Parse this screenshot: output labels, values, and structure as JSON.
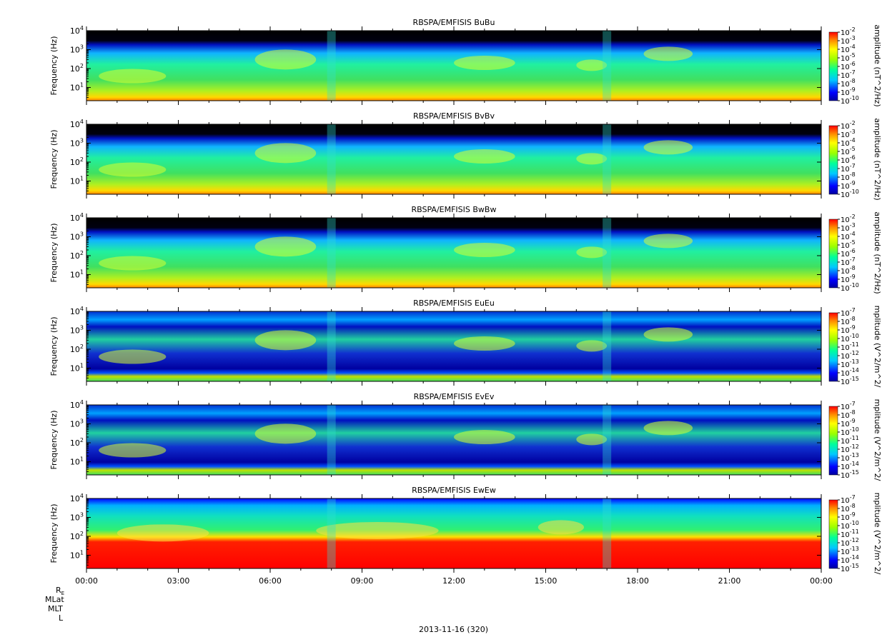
{
  "chart_data": [
    {
      "type": "heatmap",
      "title": "RBSPA/EMFISIS  BuBu",
      "ylabel": "Frequency (Hz)",
      "ylim": [
        2,
        10000
      ],
      "yscale": "log",
      "y_ticks": [
        "10^1",
        "10^2",
        "10^3",
        "10^4"
      ],
      "colorbar_label": "amplitude (nT^2/Hz)",
      "colorbar_ticks": [
        "10^-2",
        "10^-3",
        "10^-4",
        "10^-5",
        "10^-6",
        "10^-7",
        "10^-8",
        "10^-9",
        "10^-10"
      ],
      "colorbar_range": [
        -10,
        -2
      ]
    },
    {
      "type": "heatmap",
      "title": "RBSPA/EMFISIS  BvBv",
      "ylabel": "Frequency (Hz)",
      "ylim": [
        2,
        10000
      ],
      "yscale": "log",
      "y_ticks": [
        "10^1",
        "10^2",
        "10^3",
        "10^4"
      ],
      "colorbar_label": "amplitude (nT^2/Hz)",
      "colorbar_ticks": [
        "10^-2",
        "10^-3",
        "10^-4",
        "10^-5",
        "10^-6",
        "10^-7",
        "10^-8",
        "10^-9",
        "10^-10"
      ],
      "colorbar_range": [
        -10,
        -2
      ]
    },
    {
      "type": "heatmap",
      "title": "RBSPA/EMFISIS  BwBw",
      "ylabel": "Frequency (Hz)",
      "ylim": [
        2,
        10000
      ],
      "yscale": "log",
      "y_ticks": [
        "10^1",
        "10^2",
        "10^3",
        "10^4"
      ],
      "colorbar_label": "amplitude (nT^2/Hz)",
      "colorbar_ticks": [
        "10^-2",
        "10^-3",
        "10^-4",
        "10^-5",
        "10^-6",
        "10^-7",
        "10^-8",
        "10^-9",
        "10^-10"
      ],
      "colorbar_range": [
        -10,
        -2
      ]
    },
    {
      "type": "heatmap",
      "title": "RBSPA/EMFISIS  EuEu",
      "ylabel": "Frequency (Hz)",
      "ylim": [
        2,
        10000
      ],
      "yscale": "log",
      "y_ticks": [
        "10^1",
        "10^2",
        "10^3",
        "10^4"
      ],
      "colorbar_label": "mplitude (V^2/m^2/",
      "colorbar_ticks": [
        "10^-7",
        "10^-8",
        "10^-9",
        "10^-10",
        "10^-11",
        "10^-12",
        "10^-13",
        "10^-14",
        "10^-15"
      ],
      "colorbar_range": [
        -15,
        -7
      ]
    },
    {
      "type": "heatmap",
      "title": "RBSPA/EMFISIS  EvEv",
      "ylabel": "Frequency (Hz)",
      "ylim": [
        2,
        10000
      ],
      "yscale": "log",
      "y_ticks": [
        "10^1",
        "10^2",
        "10^3",
        "10^4"
      ],
      "colorbar_label": "mplitude (V^2/m^2/",
      "colorbar_ticks": [
        "10^-7",
        "10^-8",
        "10^-9",
        "10^-10",
        "10^-11",
        "10^-12",
        "10^-13",
        "10^-14",
        "10^-15"
      ],
      "colorbar_range": [
        -15,
        -7
      ]
    },
    {
      "type": "heatmap",
      "title": "RBSPA/EMFISIS  EwEw",
      "ylabel": "Frequency (Hz)",
      "ylim": [
        2,
        10000
      ],
      "yscale": "log",
      "y_ticks": [
        "10^1",
        "10^2",
        "10^3",
        "10^4"
      ],
      "colorbar_label": "mplitude (V^2/m^2/",
      "colorbar_ticks": [
        "10^-7",
        "10^-8",
        "10^-9",
        "10^-10",
        "10^-11",
        "10^-12",
        "10^-13",
        "10^-14",
        "10^-15"
      ],
      "colorbar_range": [
        -15,
        -7
      ]
    }
  ],
  "x_axis": {
    "range_hours": [
      0,
      24
    ],
    "tick_labels": [
      "00:00",
      "03:00",
      "06:00",
      "09:00",
      "12:00",
      "15:00",
      "18:00",
      "21:00",
      "00:00"
    ]
  },
  "ephemeris_labels": [
    "RE",
    "MLat",
    "MLT",
    "L"
  ],
  "date_label": "2013-11-16 (320)"
}
